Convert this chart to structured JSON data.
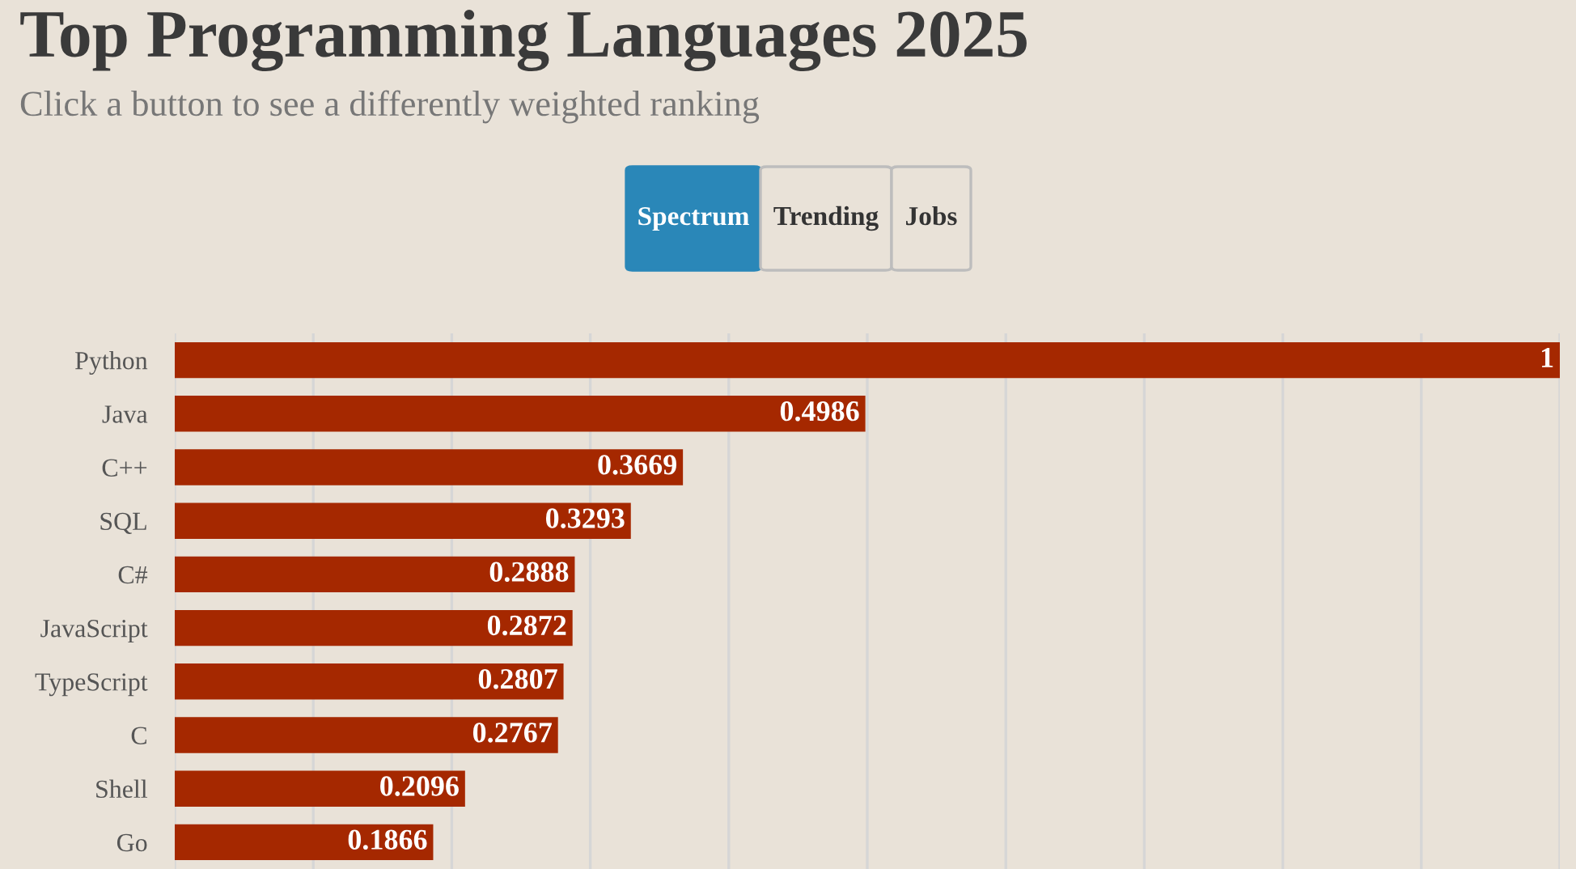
{
  "chart_data": {
    "type": "bar",
    "orientation": "horizontal",
    "title": "Top Programming Languages 2025",
    "subtitle": "Click a button to see a differently weighted ranking",
    "annotations": [
      "Spectrum",
      "Trending",
      "Jobs"
    ],
    "categories": [
      "Python",
      "Java",
      "C++",
      "SQL",
      "C#",
      "JavaScript",
      "TypeScript",
      "C",
      "Shell",
      "Go"
    ],
    "values": [
      1,
      0.4986,
      0.3669,
      0.3293,
      0.2888,
      0.2872,
      0.2807,
      0.2767,
      0.2096,
      0.1866
    ],
    "color": "#a52800",
    "data_labels": true,
    "grid": "x",
    "tick_labels": "y",
    "xlim": [
      0,
      1
    ],
    "xticks": [
      {
        "value": 0,
        "label": null
      },
      {
        "value": 0.1,
        "label": null
      },
      {
        "value": 0.2,
        "label": null
      },
      {
        "value": 0.3,
        "label": null
      },
      {
        "value": 0.4,
        "label": null
      },
      {
        "value": 0.5,
        "label": null
      },
      {
        "value": 0.6,
        "label": null
      },
      {
        "value": 0.7,
        "label": null
      },
      {
        "value": 0.8,
        "label": null
      },
      {
        "value": 0.9,
        "label": null
      },
      {
        "value": 1,
        "label": null
      }
    ]
  }
}
